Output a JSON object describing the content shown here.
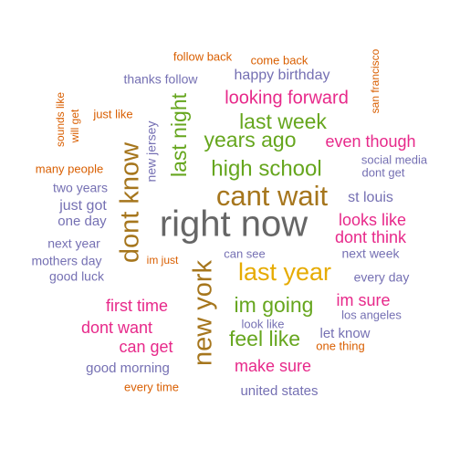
{
  "colors": {
    "orange": "#d95f02",
    "purple": "#7570b3",
    "pink": "#e7298a",
    "green": "#66a61e",
    "gold": "#e6ab02",
    "brown": "#a6761d",
    "gray": "#666666"
  },
  "words": [
    {
      "text": "right now",
      "color": "gray"
    },
    {
      "text": "cant wait",
      "color": "brown"
    },
    {
      "text": "last year",
      "color": "gold"
    },
    {
      "text": "new york",
      "color": "brown"
    },
    {
      "text": "dont know",
      "color": "brown"
    },
    {
      "text": "high school",
      "color": "green"
    },
    {
      "text": "years ago",
      "color": "green"
    },
    {
      "text": "last night",
      "color": "green"
    },
    {
      "text": "last week",
      "color": "green"
    },
    {
      "text": "im going",
      "color": "green"
    },
    {
      "text": "feel like",
      "color": "green"
    },
    {
      "text": "looking forward",
      "color": "pink"
    },
    {
      "text": "even though",
      "color": "pink"
    },
    {
      "text": "looks like",
      "color": "pink"
    },
    {
      "text": "dont think",
      "color": "pink"
    },
    {
      "text": "im sure",
      "color": "pink"
    },
    {
      "text": "first time",
      "color": "pink"
    },
    {
      "text": "dont want",
      "color": "pink"
    },
    {
      "text": "can get",
      "color": "pink"
    },
    {
      "text": "make sure",
      "color": "pink"
    },
    {
      "text": "happy birthday",
      "color": "purple"
    },
    {
      "text": "thanks follow",
      "color": "purple"
    },
    {
      "text": "new jersey",
      "color": "purple"
    },
    {
      "text": "st louis",
      "color": "purple"
    },
    {
      "text": "social media",
      "color": "purple"
    },
    {
      "text": "dont get",
      "color": "purple"
    },
    {
      "text": "two years",
      "color": "purple"
    },
    {
      "text": "just got",
      "color": "purple"
    },
    {
      "text": "one day",
      "color": "purple"
    },
    {
      "text": "next year",
      "color": "purple"
    },
    {
      "text": "mothers day",
      "color": "purple"
    },
    {
      "text": "good luck",
      "color": "purple"
    },
    {
      "text": "can see",
      "color": "purple"
    },
    {
      "text": "next week",
      "color": "purple"
    },
    {
      "text": "every day",
      "color": "purple"
    },
    {
      "text": "los angeles",
      "color": "purple"
    },
    {
      "text": "look like",
      "color": "purple"
    },
    {
      "text": "let know",
      "color": "purple"
    },
    {
      "text": "good morning",
      "color": "purple"
    },
    {
      "text": "united states",
      "color": "purple"
    },
    {
      "text": "follow back",
      "color": "orange"
    },
    {
      "text": "come back",
      "color": "orange"
    },
    {
      "text": "san francisco",
      "color": "orange"
    },
    {
      "text": "sounds like",
      "color": "orange"
    },
    {
      "text": "will get",
      "color": "orange"
    },
    {
      "text": "just like",
      "color": "orange"
    },
    {
      "text": "many people",
      "color": "orange"
    },
    {
      "text": "im just",
      "color": "orange"
    },
    {
      "text": "one thing",
      "color": "orange"
    },
    {
      "text": "every time",
      "color": "orange"
    }
  ]
}
